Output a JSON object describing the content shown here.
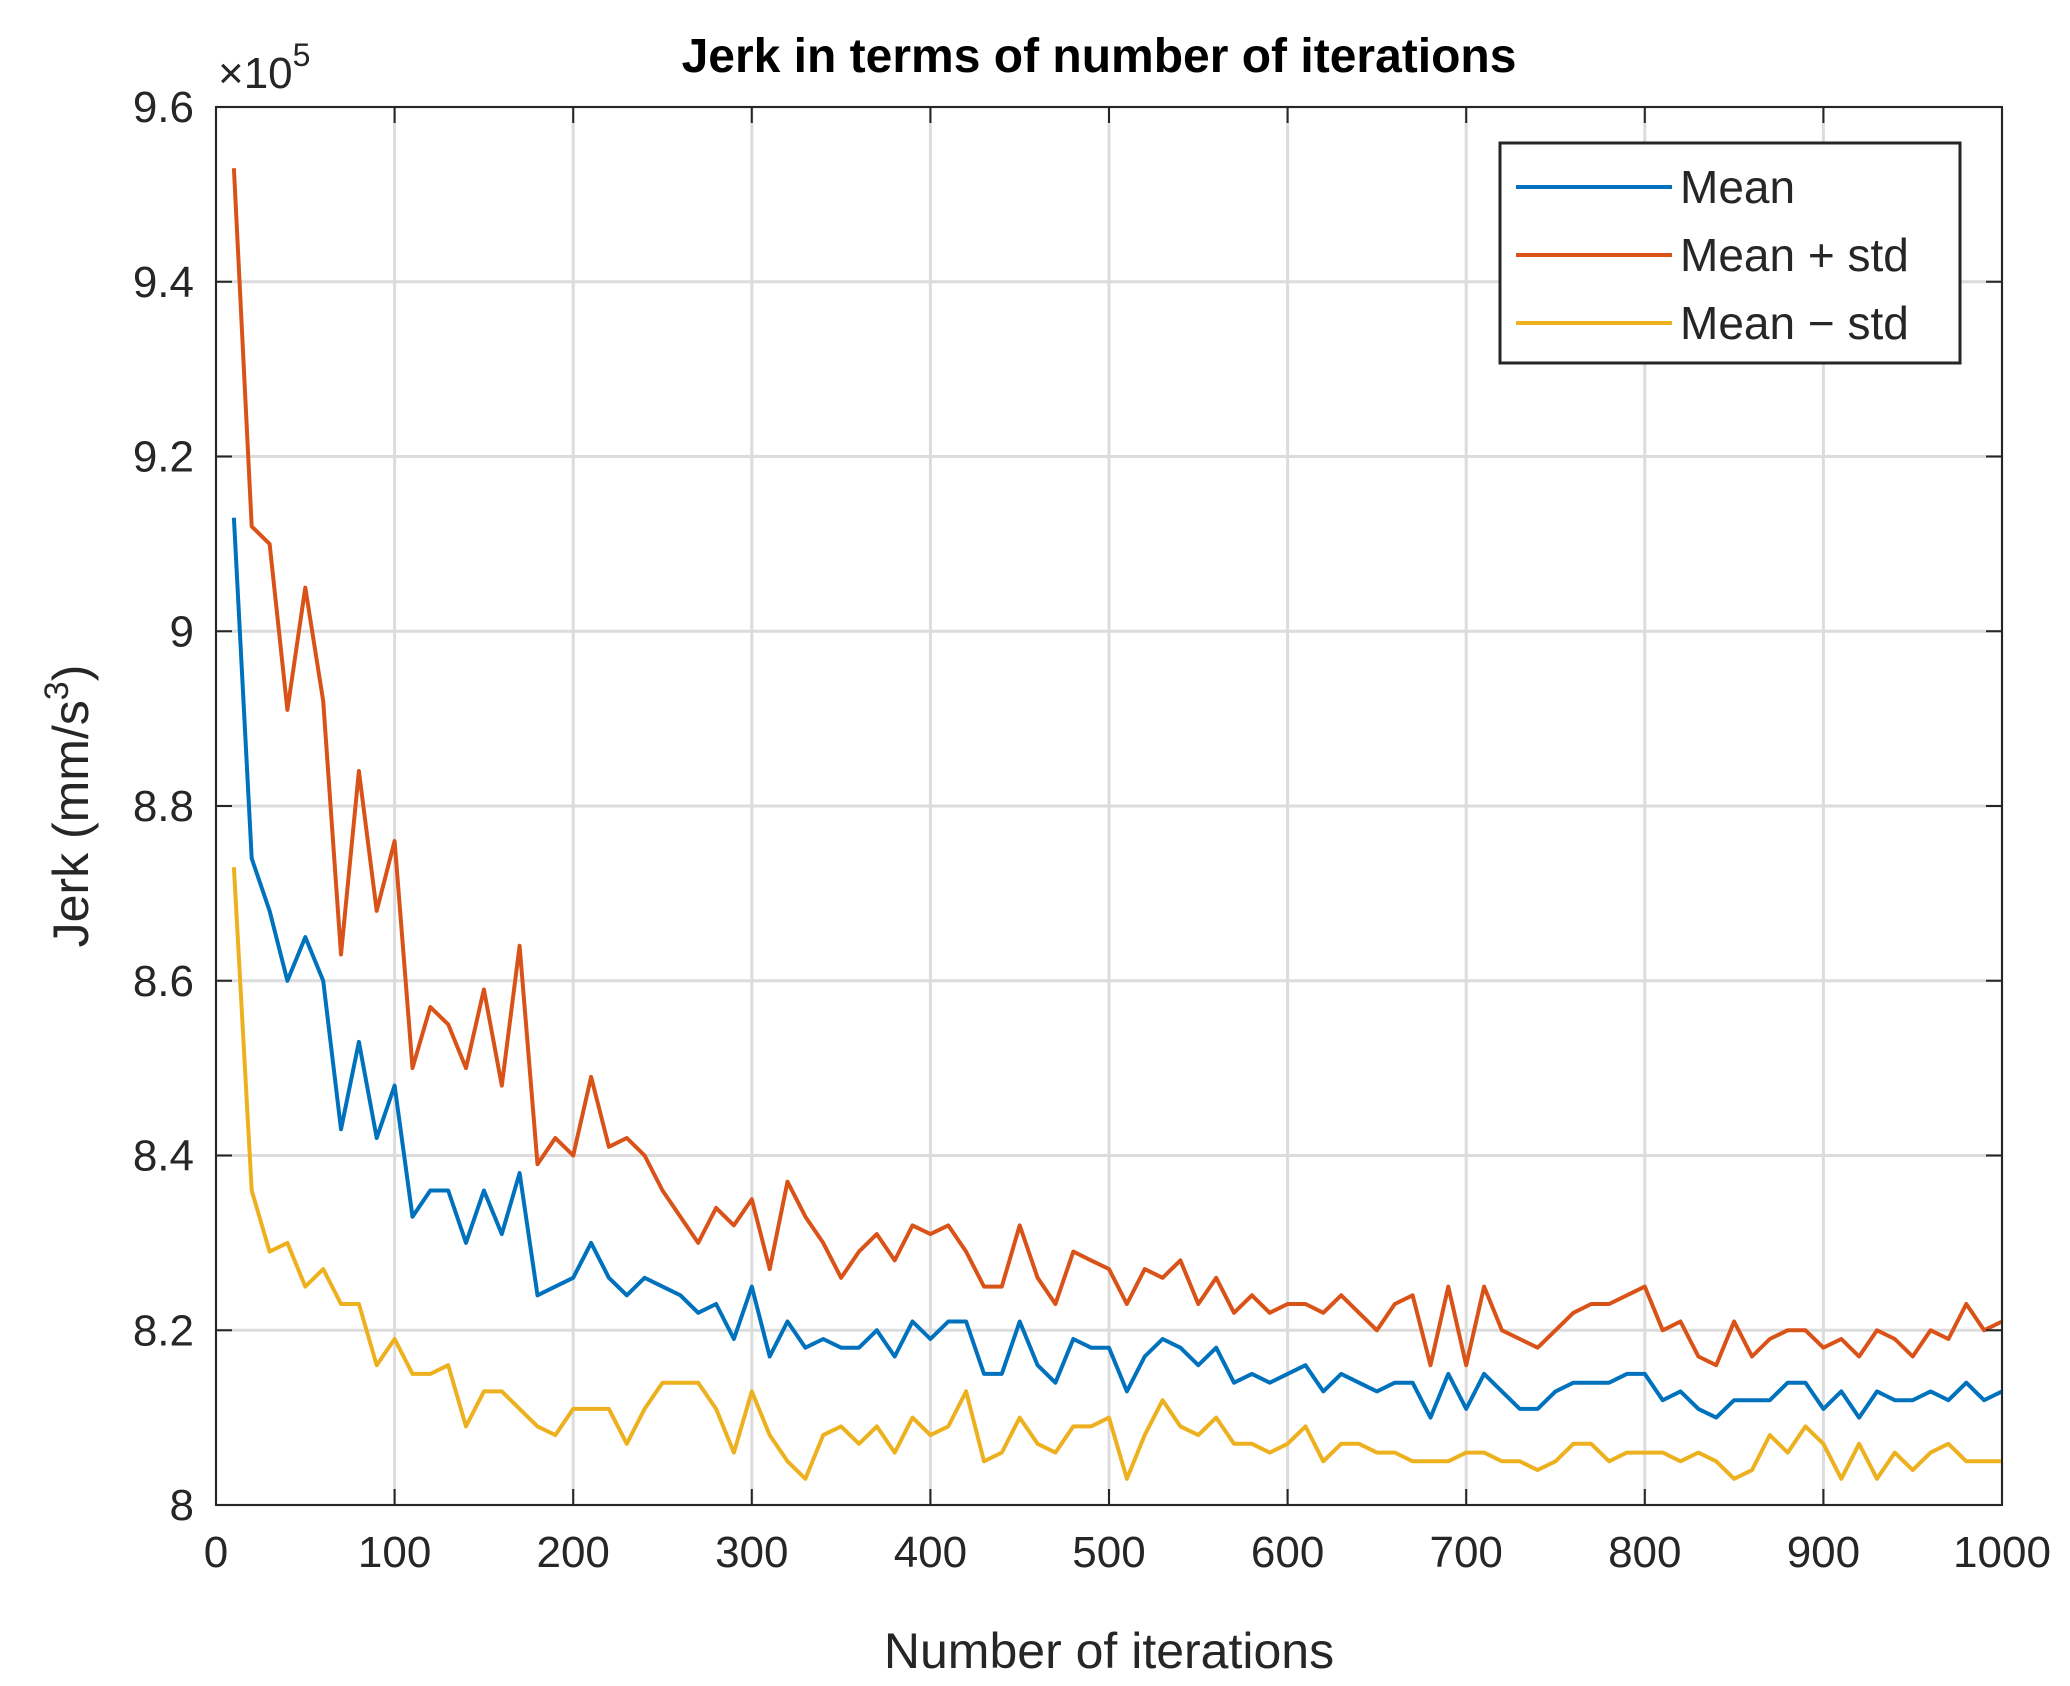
{
  "chart_data": {
    "type": "line",
    "title": "Jerk in terms of number of iterations",
    "xlabel": "Number of iterations",
    "ylabel": "Jerk (mm/s",
    "ylabel_superscript": "3",
    "ylabel_suffix": ")",
    "exponent_label": "×10",
    "exponent_power": "5",
    "xlim": [
      0,
      1000
    ],
    "ylim": [
      8.0,
      9.6
    ],
    "grid": true,
    "legend_position": "top-right",
    "x_ticks": [
      0,
      100,
      200,
      300,
      400,
      500,
      600,
      700,
      800,
      900,
      1000
    ],
    "x_tick_labels": [
      "0",
      "100",
      "200",
      "300",
      "400",
      "500",
      "600",
      "700",
      "800",
      "900",
      "1000"
    ],
    "y_ticks": [
      8.0,
      8.2,
      8.4,
      8.6,
      8.8,
      9.0,
      9.2,
      9.4,
      9.6
    ],
    "y_tick_labels": [
      "8",
      "8.2",
      "8.4",
      "8.6",
      "8.8",
      "9",
      "9.2",
      "9.4",
      "9.6"
    ],
    "x": [
      10,
      20,
      30,
      40,
      50,
      60,
      70,
      80,
      90,
      100,
      110,
      120,
      130,
      140,
      150,
      160,
      170,
      180,
      190,
      200,
      210,
      220,
      230,
      240,
      250,
      260,
      270,
      280,
      290,
      300,
      310,
      320,
      330,
      340,
      350,
      360,
      370,
      380,
      390,
      400,
      410,
      420,
      430,
      440,
      450,
      460,
      470,
      480,
      490,
      500,
      510,
      520,
      530,
      540,
      550,
      560,
      570,
      580,
      590,
      600,
      610,
      620,
      630,
      640,
      650,
      660,
      670,
      680,
      690,
      700,
      710,
      720,
      730,
      740,
      750,
      760,
      770,
      780,
      790,
      800,
      810,
      820,
      830,
      840,
      850,
      860,
      870,
      880,
      890,
      900,
      910,
      920,
      930,
      940,
      950,
      960,
      970,
      980,
      990,
      1000
    ],
    "series": [
      {
        "name": "Mean",
        "color": "#0072BD",
        "values": [
          9.13,
          8.74,
          8.68,
          8.6,
          8.65,
          8.6,
          8.43,
          8.53,
          8.42,
          8.48,
          8.33,
          8.36,
          8.36,
          8.3,
          8.36,
          8.31,
          8.38,
          8.24,
          8.25,
          8.26,
          8.3,
          8.26,
          8.24,
          8.26,
          8.25,
          8.24,
          8.22,
          8.23,
          8.19,
          8.25,
          8.17,
          8.21,
          8.18,
          8.19,
          8.18,
          8.18,
          8.2,
          8.17,
          8.21,
          8.19,
          8.21,
          8.21,
          8.15,
          8.15,
          8.21,
          8.16,
          8.14,
          8.19,
          8.18,
          8.18,
          8.13,
          8.17,
          8.19,
          8.18,
          8.16,
          8.18,
          8.14,
          8.15,
          8.14,
          8.15,
          8.16,
          8.13,
          8.15,
          8.14,
          8.13,
          8.14,
          8.14,
          8.1,
          8.15,
          8.11,
          8.15,
          8.13,
          8.11,
          8.11,
          8.13,
          8.14,
          8.14,
          8.14,
          8.15,
          8.15,
          8.12,
          8.13,
          8.11,
          8.1,
          8.12,
          8.12,
          8.12,
          8.14,
          8.14,
          8.11,
          8.13,
          8.1,
          8.13,
          8.12,
          8.12,
          8.13,
          8.12,
          8.14,
          8.12,
          8.13
        ]
      },
      {
        "name": "Mean + std",
        "color": "#D95319",
        "values": [
          9.53,
          9.12,
          9.1,
          8.91,
          9.05,
          8.92,
          8.63,
          8.84,
          8.68,
          8.76,
          8.5,
          8.57,
          8.55,
          8.5,
          8.59,
          8.48,
          8.64,
          8.39,
          8.42,
          8.4,
          8.49,
          8.41,
          8.42,
          8.4,
          8.36,
          8.33,
          8.3,
          8.34,
          8.32,
          8.35,
          8.27,
          8.37,
          8.33,
          8.3,
          8.26,
          8.29,
          8.31,
          8.28,
          8.32,
          8.31,
          8.32,
          8.29,
          8.25,
          8.25,
          8.32,
          8.26,
          8.23,
          8.29,
          8.28,
          8.27,
          8.23,
          8.27,
          8.26,
          8.28,
          8.23,
          8.26,
          8.22,
          8.24,
          8.22,
          8.23,
          8.23,
          8.22,
          8.24,
          8.22,
          8.2,
          8.23,
          8.24,
          8.16,
          8.25,
          8.16,
          8.25,
          8.2,
          8.19,
          8.18,
          8.2,
          8.22,
          8.23,
          8.23,
          8.24,
          8.25,
          8.2,
          8.21,
          8.17,
          8.16,
          8.21,
          8.17,
          8.19,
          8.2,
          8.2,
          8.18,
          8.19,
          8.17,
          8.2,
          8.19,
          8.17,
          8.2,
          8.19,
          8.23,
          8.2,
          8.21
        ]
      },
      {
        "name": "Mean − std",
        "color": "#EDB120",
        "values": [
          8.73,
          8.36,
          8.29,
          8.3,
          8.25,
          8.27,
          8.23,
          8.23,
          8.16,
          8.19,
          8.15,
          8.15,
          8.16,
          8.09,
          8.13,
          8.13,
          8.11,
          8.09,
          8.08,
          8.11,
          8.11,
          8.11,
          8.07,
          8.11,
          8.14,
          8.14,
          8.14,
          8.11,
          8.06,
          8.13,
          8.08,
          8.05,
          8.03,
          8.08,
          8.09,
          8.07,
          8.09,
          8.06,
          8.1,
          8.08,
          8.09,
          8.13,
          8.05,
          8.06,
          8.1,
          8.07,
          8.06,
          8.09,
          8.09,
          8.1,
          8.03,
          8.08,
          8.12,
          8.09,
          8.08,
          8.1,
          8.07,
          8.07,
          8.06,
          8.07,
          8.09,
          8.05,
          8.07,
          8.07,
          8.06,
          8.06,
          8.05,
          8.05,
          8.05,
          8.06,
          8.06,
          8.05,
          8.05,
          8.04,
          8.05,
          8.07,
          8.07,
          8.05,
          8.06,
          8.06,
          8.06,
          8.05,
          8.06,
          8.05,
          8.03,
          8.04,
          8.08,
          8.06,
          8.09,
          8.07,
          8.03,
          8.07,
          8.03,
          8.06,
          8.04,
          8.06,
          8.07,
          8.05,
          8.05,
          8.05
        ]
      }
    ]
  }
}
